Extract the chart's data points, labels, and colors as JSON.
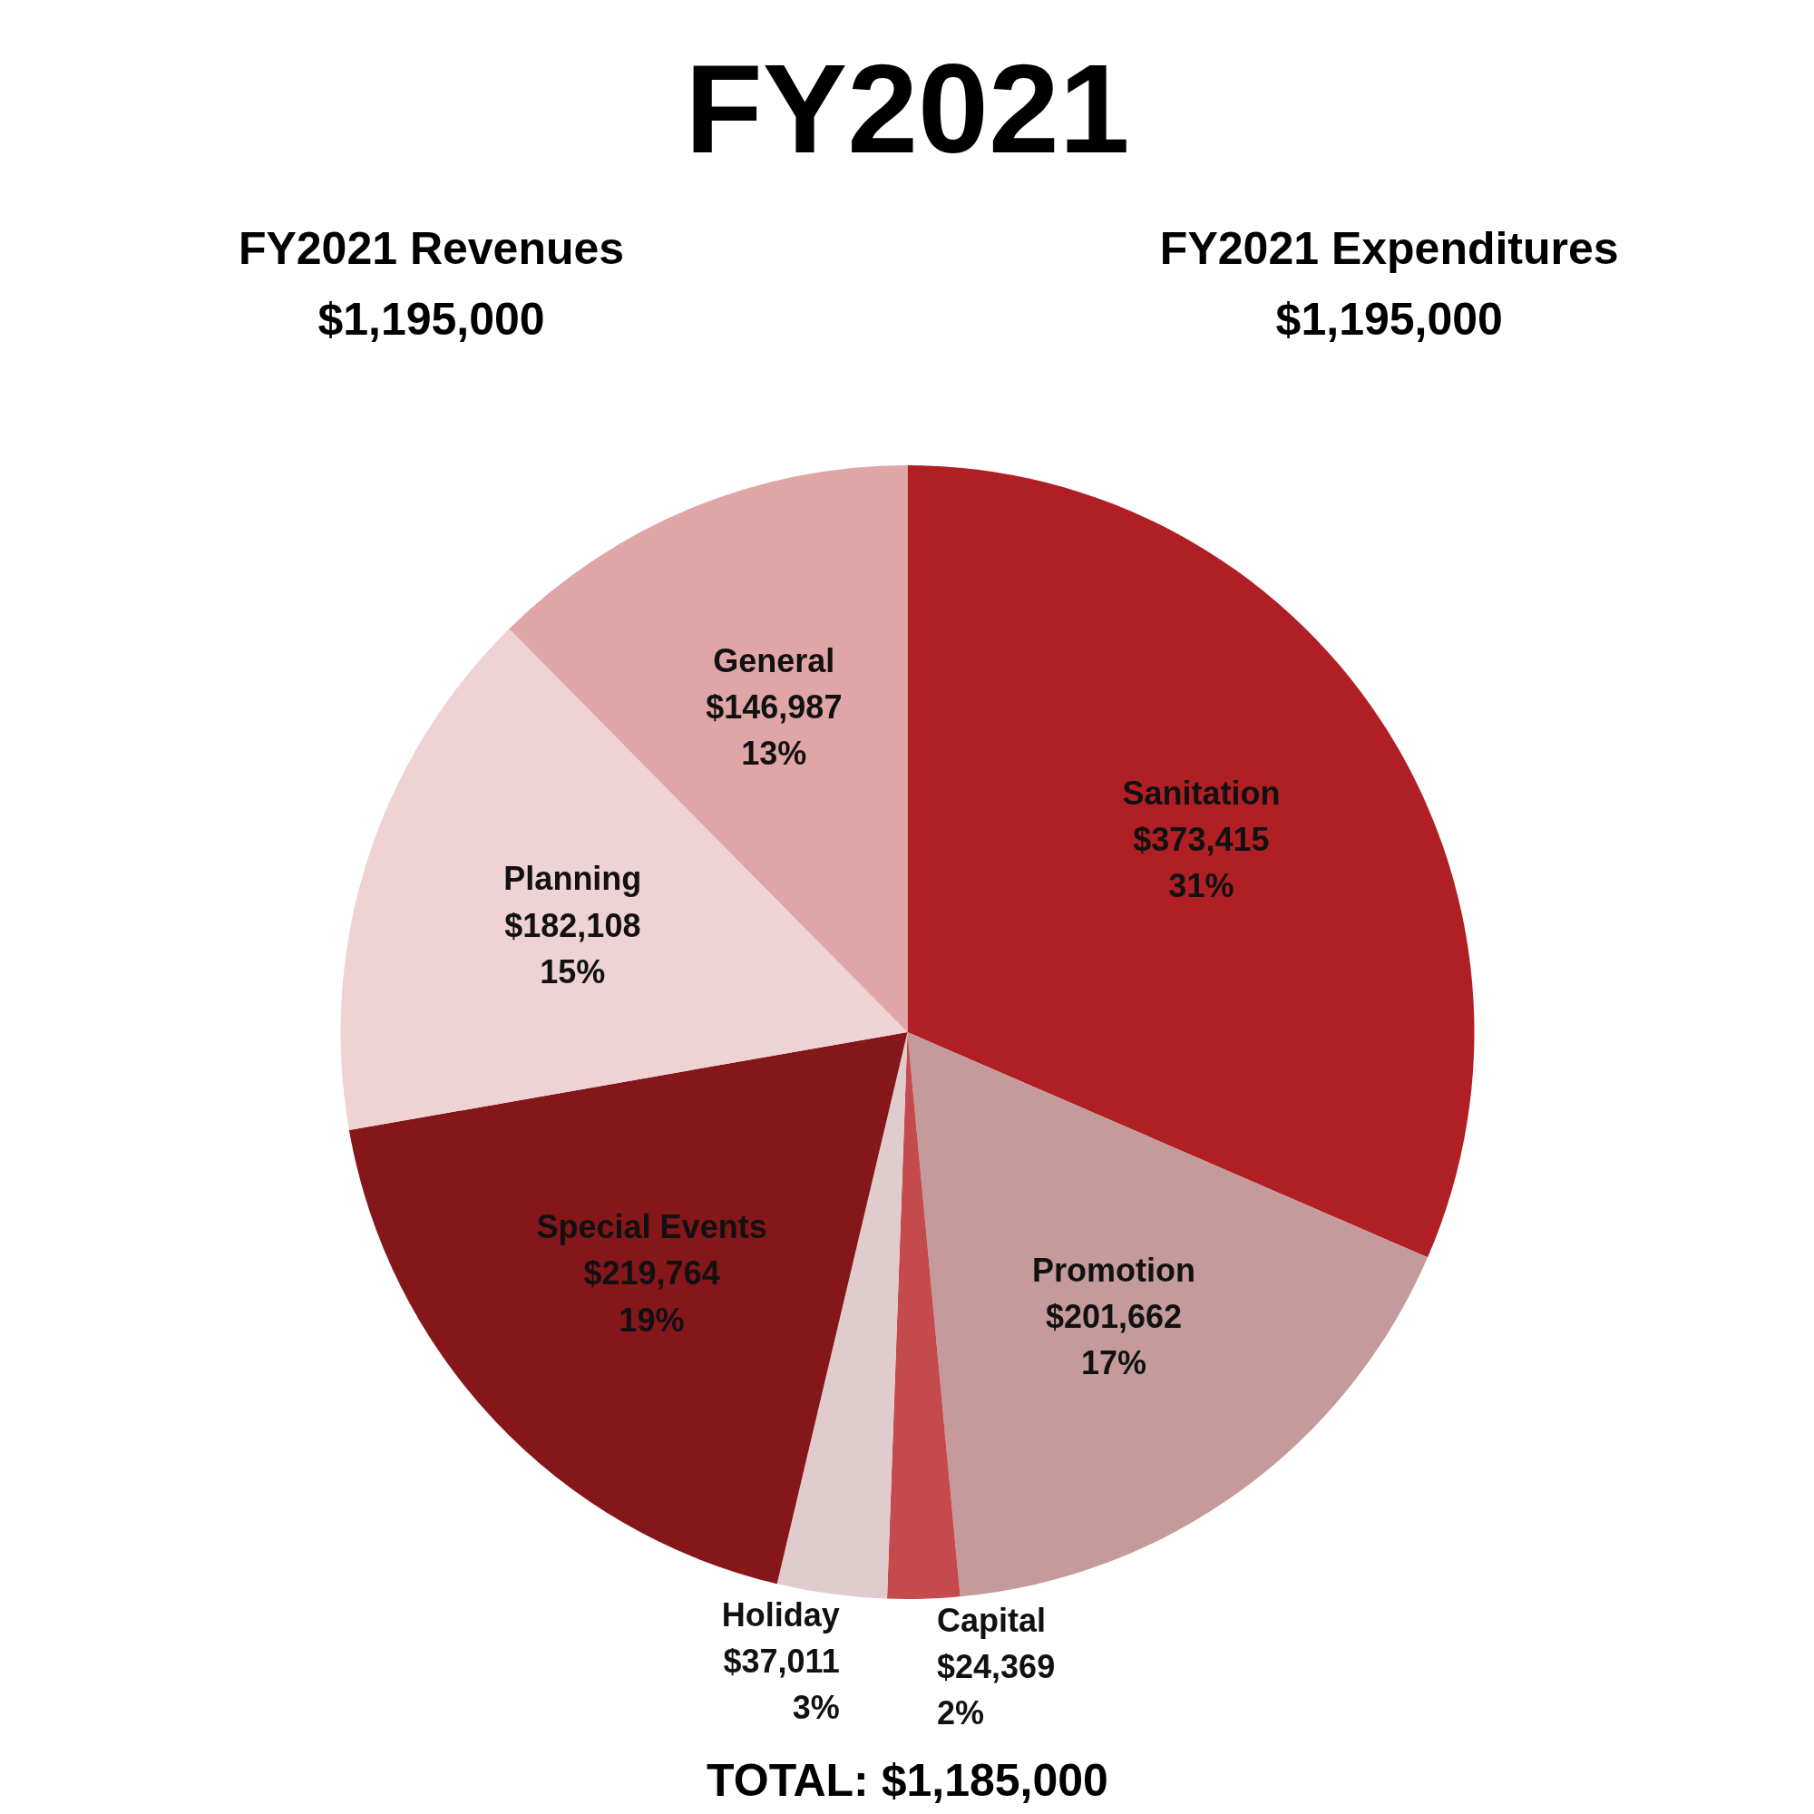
{
  "chart_data": {
    "type": "pie",
    "title": "FY2021",
    "categories": [
      "Sanitation",
      "Promotion",
      "Capital",
      "Holiday",
      "Special Events",
      "Planning",
      "General"
    ],
    "values": [
      373415,
      201662,
      24369,
      37011,
      219764,
      182108,
      146987
    ],
    "colors": [
      "#b01f24",
      "#c49a9a",
      "#c44a4d",
      "#e0cccd",
      "#85161a",
      "#efd2d3",
      "#e0a5a7"
    ],
    "value_labels": [
      "$373,415\n31%",
      "$201,662\n17%",
      "$24,369\n2%",
      "$37,011\n3%",
      "$219,764\n19%",
      "$182,108\n15%",
      "$146,987\n13%"
    ],
    "annotations": [
      "FY2021 Revenues\n$1,195,000",
      "FY2021 Expenditures\n$1,195,000",
      "TOTAL: $1,185,000"
    ],
    "legend": false
  }
}
